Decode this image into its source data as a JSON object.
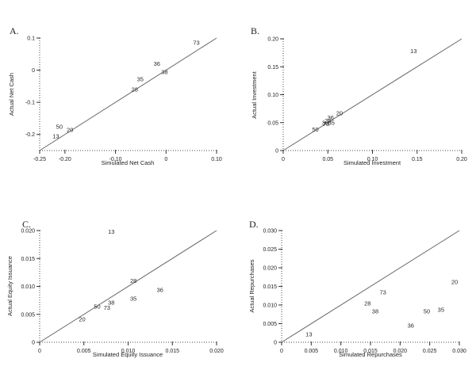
{
  "figure": {
    "background": "#ffffff",
    "axis_color": "#4a4a4a",
    "line_color": "#666666",
    "text_color": "#222222"
  },
  "chart_data": [
    {
      "id": "A",
      "letter": "A.",
      "type": "scatter",
      "marker": "numeric-text-label",
      "xlabel": "Simulated Net Cash",
      "ylabel": "Actual Net Cash",
      "xlim": [
        -0.25,
        0.1
      ],
      "ylim": [
        -0.25,
        0.1
      ],
      "xtick_values": [
        -0.25,
        -0.2,
        -0.1,
        0,
        0.1
      ],
      "xtick_labels": [
        "-0.25",
        "-0.20",
        "-0.10",
        "0",
        "0.10"
      ],
      "ytick_values": [
        0.1,
        0,
        -0.1,
        -0.2
      ],
      "ytick_labels": [
        "0.1",
        "0",
        "-0.1",
        "-0.2"
      ],
      "identity_line": true,
      "grid": false,
      "points": [
        {
          "label": "73",
          "x": 0.06,
          "y": 0.085
        },
        {
          "label": "36",
          "x": -0.018,
          "y": 0.02
        },
        {
          "label": "38",
          "x": -0.003,
          "y": -0.006
        },
        {
          "label": "35",
          "x": -0.051,
          "y": -0.028
        },
        {
          "label": "28",
          "x": -0.062,
          "y": -0.06
        },
        {
          "label": "50",
          "x": -0.211,
          "y": -0.176
        },
        {
          "label": "20",
          "x": -0.19,
          "y": -0.186
        },
        {
          "label": "13",
          "x": -0.218,
          "y": -0.206
        }
      ]
    },
    {
      "id": "B",
      "letter": "B.",
      "type": "scatter",
      "marker": "numeric-text-label",
      "xlabel": "Simulated Investment",
      "ylabel": "Actual Investment",
      "xlim": [
        0,
        0.2
      ],
      "ylim": [
        0,
        0.2
      ],
      "xtick_values": [
        0,
        0.05,
        0.1,
        0.15,
        0.2
      ],
      "xtick_labels": [
        "0",
        "0.05",
        "0.10",
        "0.15",
        "0.20"
      ],
      "ytick_values": [
        0.2,
        0.15,
        0.1,
        0.05,
        0
      ],
      "ytick_labels": [
        "0.20",
        "0.15",
        "0.10",
        "0.05",
        "0"
      ],
      "identity_line": true,
      "grid": false,
      "points": [
        {
          "label": "13",
          "x": 0.146,
          "y": 0.178
        },
        {
          "label": "20",
          "x": 0.063,
          "y": 0.067
        },
        {
          "label": "36",
          "x": 0.053,
          "y": 0.059
        },
        {
          "label": "28",
          "x": 0.05,
          "y": 0.053
        },
        {
          "label": "35",
          "x": 0.054,
          "y": 0.05
        },
        {
          "label": "38",
          "x": 0.047,
          "y": 0.05
        },
        {
          "label": "73",
          "x": 0.048,
          "y": 0.048
        },
        {
          "label": "50",
          "x": 0.036,
          "y": 0.038
        }
      ]
    },
    {
      "id": "C",
      "letter": "C.",
      "type": "scatter",
      "marker": "numeric-text-label",
      "xlabel": "Simulated Equity Issuance",
      "ylabel": "Actual Equity Issuance",
      "xlim": [
        0,
        0.02
      ],
      "ylim": [
        0,
        0.02
      ],
      "xtick_values": [
        0,
        0.005,
        0.01,
        0.015,
        0.02
      ],
      "xtick_labels": [
        "0",
        "0.005",
        "0.010",
        "0.015",
        "0.020"
      ],
      "ytick_values": [
        0.02,
        0.015,
        0.01,
        0.005,
        0
      ],
      "ytick_labels": [
        "0.020",
        "0.015",
        "0.010",
        "0.005",
        "0"
      ],
      "identity_line": true,
      "grid": false,
      "points": [
        {
          "label": "13",
          "x": 0.0081,
          "y": 0.0198
        },
        {
          "label": "28",
          "x": 0.0106,
          "y": 0.011
        },
        {
          "label": "36",
          "x": 0.0136,
          "y": 0.0094
        },
        {
          "label": "35",
          "x": 0.0106,
          "y": 0.0078
        },
        {
          "label": "38",
          "x": 0.0081,
          "y": 0.0071
        },
        {
          "label": "50",
          "x": 0.0065,
          "y": 0.0064
        },
        {
          "label": "73",
          "x": 0.0076,
          "y": 0.0062
        },
        {
          "label": "20",
          "x": 0.0048,
          "y": 0.0041
        }
      ]
    },
    {
      "id": "D",
      "letter": "D.",
      "type": "scatter",
      "marker": "numeric-text-label",
      "xlabel": "Simulated Repurchases",
      "ylabel": "Actual Repurchases",
      "xlim": [
        0,
        0.03
      ],
      "ylim": [
        0,
        0.03
      ],
      "xtick_values": [
        0,
        0.005,
        0.01,
        0.015,
        0.02,
        0.025,
        0.03
      ],
      "xtick_labels": [
        "0",
        "0.005",
        "0.010",
        "0.015",
        "0.020",
        "0.025",
        "0.030"
      ],
      "ytick_values": [
        0.03,
        0.025,
        0.02,
        0.015,
        0.01,
        0.005,
        0
      ],
      "ytick_labels": [
        "0.030",
        "0.025",
        "0.020",
        "0.015",
        "0.010",
        "0.005",
        "0"
      ],
      "identity_line": true,
      "grid": false,
      "points": [
        {
          "label": "20",
          "x": 0.0292,
          "y": 0.0162
        },
        {
          "label": "73",
          "x": 0.0171,
          "y": 0.0134
        },
        {
          "label": "28",
          "x": 0.0145,
          "y": 0.0104
        },
        {
          "label": "38",
          "x": 0.0158,
          "y": 0.0083
        },
        {
          "label": "50",
          "x": 0.0245,
          "y": 0.0083
        },
        {
          "label": "35",
          "x": 0.0269,
          "y": 0.0087
        },
        {
          "label": "36",
          "x": 0.0218,
          "y": 0.0045
        },
        {
          "label": "13",
          "x": 0.0046,
          "y": 0.0022
        }
      ]
    }
  ]
}
